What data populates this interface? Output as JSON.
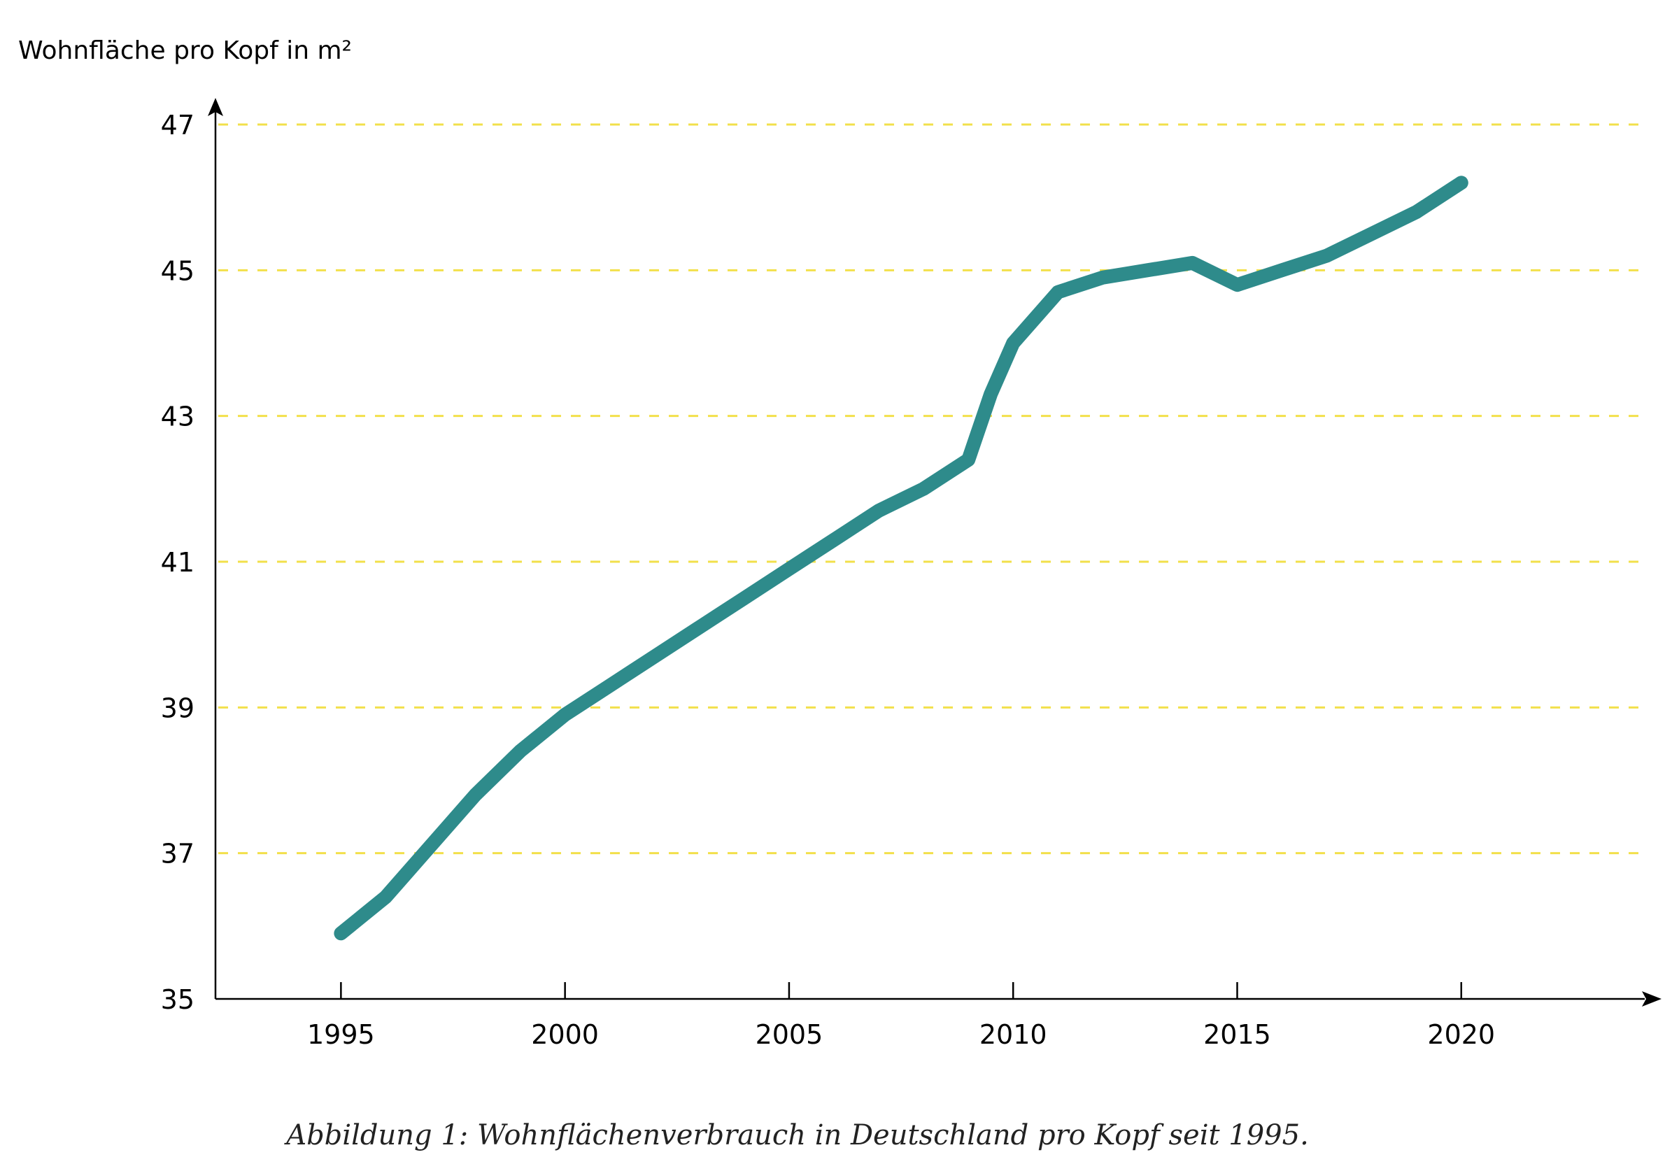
{
  "chart_data": {
    "type": "line",
    "ylabel": "Wohnfläche pro Kopf in m²",
    "xlabel": "",
    "title": "",
    "caption": "Abbildung 1: Wohnflächenverbrauch in Deutschland pro Kopf seit 1995.",
    "xlim": [
      1992.2,
      2024
    ],
    "ylim": [
      35,
      47
    ],
    "xticks": [
      1995,
      2000,
      2005,
      2010,
      2015,
      2020
    ],
    "yticks": [
      35,
      37,
      39,
      41,
      43,
      45,
      47
    ],
    "grid": "horizontal dashed",
    "legend": "none",
    "series": [
      {
        "x": [
          1995,
          1996,
          1997,
          1998,
          1999,
          2000,
          2001,
          2002,
          2003,
          2004,
          2005,
          2006,
          2007,
          2008,
          2009,
          2009.5,
          2010,
          2011,
          2012,
          2013,
          2014,
          2015,
          2016,
          2017,
          2018,
          2019,
          2020
        ],
        "values": [
          35.9,
          36.4,
          37.1,
          37.8,
          38.4,
          38.9,
          39.3,
          39.7,
          40.1,
          40.5,
          40.9,
          41.3,
          41.7,
          42.0,
          42.4,
          43.3,
          44.0,
          44.7,
          44.9,
          45.0,
          45.1,
          44.8,
          45.0,
          45.2,
          45.5,
          45.8,
          46.2
        ]
      }
    ]
  },
  "colors": {
    "line": "#2E8B8B",
    "grid": "#F2E04B",
    "axis": "#000000"
  },
  "caption": {
    "text": "Abbildung 1: Wohnflächenverbrauch in Deutschland pro Kopf seit 1995."
  }
}
